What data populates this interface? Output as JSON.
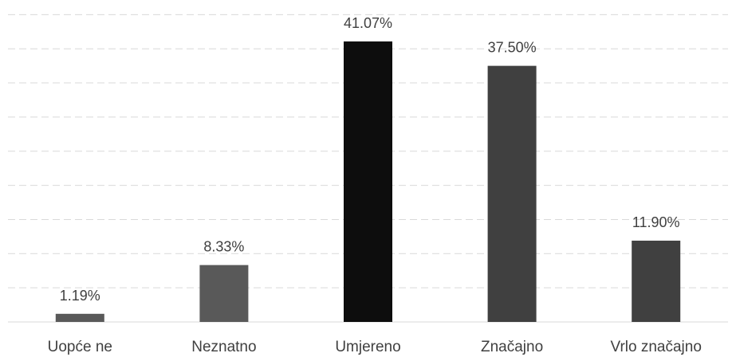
{
  "chart_data": {
    "type": "bar",
    "title": "",
    "xlabel": "",
    "ylabel": "",
    "categories": [
      "Uopće ne",
      "Neznatno",
      "Umjereno",
      "Značajno",
      "Vrlo značajno"
    ],
    "values": [
      1.19,
      8.33,
      41.07,
      37.5,
      11.9
    ],
    "data_labels": [
      "1.19%",
      "8.33%",
      "41.07%",
      "37.50%",
      "11.90%"
    ],
    "bar_colors": [
      "#595959",
      "#595959",
      "#0d0d0d",
      "#404040",
      "#404040"
    ],
    "ylim": [
      0,
      45
    ],
    "grid": true,
    "legend": "none",
    "y_tick_labels_visible": false
  }
}
